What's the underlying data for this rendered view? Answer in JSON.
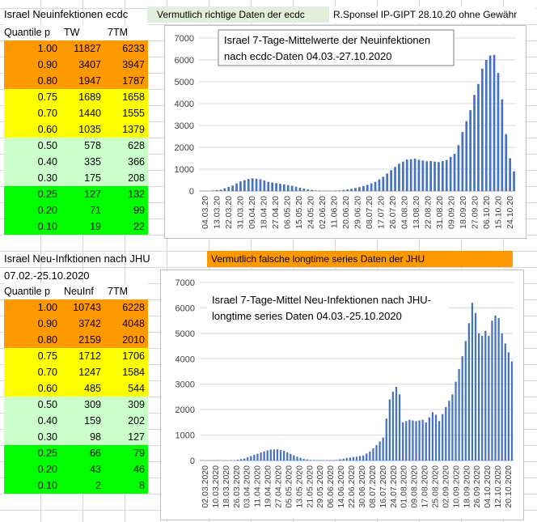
{
  "top": {
    "title": "Israel Neuinfektionen ecdc",
    "note": "Vermutlich richtige Daten der ecdc",
    "author": "R.Sponsel IP-GIPT 28.10.20 ohne Gewähr",
    "table": {
      "headers": [
        "Quantile p",
        "TW",
        "7TM"
      ],
      "rows": [
        [
          "1.00",
          "11827",
          "6233"
        ],
        [
          "0.90",
          "3407",
          "3947"
        ],
        [
          "0.80",
          "1947",
          "1787"
        ],
        [
          "0.75",
          "1689",
          "1658"
        ],
        [
          "0.70",
          "1440",
          "1555"
        ],
        [
          "0.60",
          "1035",
          "1379"
        ],
        [
          "0.50",
          "578",
          "628"
        ],
        [
          "0.40",
          "335",
          "366"
        ],
        [
          "0.30",
          "175",
          "208"
        ],
        [
          "0.25",
          "127",
          "132"
        ],
        [
          "0.20",
          "71",
          "99"
        ],
        [
          "0.10",
          "19",
          "22"
        ]
      ]
    }
  },
  "bottom": {
    "title": "Israel Neu-Infktionen nach JHU",
    "note": "Vermutlich falsche longtime series Daten der JHU",
    "date_range": "07.02.-25.10.2020",
    "table": {
      "headers": [
        "Quantile p",
        "NeuInf",
        "7TM"
      ],
      "rows": [
        [
          "1.00",
          "10743",
          "6228"
        ],
        [
          "0.90",
          "3742",
          "4048"
        ],
        [
          "0.80",
          "2159",
          "2010"
        ],
        [
          "0.75",
          "1712",
          "1706"
        ],
        [
          "0.70",
          "1247",
          "1584"
        ],
        [
          "0.60",
          "485",
          "544"
        ],
        [
          "0.50",
          "309",
          "309"
        ],
        [
          "0.40",
          "159",
          "202"
        ],
        [
          "0.30",
          "98",
          "127"
        ],
        [
          "0.25",
          "66",
          "79"
        ],
        [
          "0.20",
          "43",
          "46"
        ],
        [
          "0.10",
          "2",
          "8"
        ]
      ]
    }
  },
  "colors": {
    "orange": "#ff9900",
    "yellow": "#ffff00",
    "lightgreen": "#ccffcc",
    "green": "#00ff00",
    "note_green": "#e2efda",
    "note_orange": "#ff9900",
    "bar": "#4472c4"
  },
  "chart_data": [
    {
      "type": "bar",
      "title": "Israel 7-Tage-Mittelwerte der Neuinfektionen nach ecdc-Daten 04.03.-27.10.2020",
      "title_lines": [
        "Israel 7-Tage-Mittelwerte der Neuinfektionen",
        "nach ecdc-Daten 04.03.-27.10.2020"
      ],
      "ylim": [
        0,
        7000
      ],
      "yticks": [
        "0",
        "1000",
        "2000",
        "3000",
        "4000",
        "5000",
        "6000",
        "7000"
      ],
      "xticks": [
        "04.03.20",
        "13.03.20",
        "22.03.20",
        "31.03.20",
        "09.04.20",
        "18.04.20",
        "27.04.20",
        "06.05.20",
        "15.05.20",
        "24.05.20",
        "02.06.20",
        "11.06.20",
        "20.06.20",
        "29.06.20",
        "08.07.20",
        "17.07.20",
        "26.07.20",
        "04.08.20",
        "13.08.20",
        "22.08.20",
        "31.08.20",
        "09.09.20",
        "18.09.20",
        "27.09.20",
        "06.10.20",
        "15.10.20",
        "24.10.20"
      ],
      "bars": 80,
      "keypoints": [
        [
          0,
          0
        ],
        [
          2,
          5
        ],
        [
          5,
          60
        ],
        [
          8,
          250
        ],
        [
          10,
          440
        ],
        [
          12,
          550
        ],
        [
          13,
          580
        ],
        [
          15,
          540
        ],
        [
          17,
          420
        ],
        [
          20,
          330
        ],
        [
          23,
          240
        ],
        [
          25,
          150
        ],
        [
          27,
          70
        ],
        [
          29,
          25
        ],
        [
          32,
          10
        ],
        [
          35,
          25
        ],
        [
          38,
          100
        ],
        [
          40,
          180
        ],
        [
          42,
          280
        ],
        [
          44,
          420
        ],
        [
          46,
          650
        ],
        [
          48,
          950
        ],
        [
          50,
          1250
        ],
        [
          52,
          1440
        ],
        [
          54,
          1480
        ],
        [
          55,
          1430
        ],
        [
          57,
          1360
        ],
        [
          58,
          1370
        ],
        [
          60,
          1320
        ],
        [
          62,
          1420
        ],
        [
          64,
          1700
        ],
        [
          65,
          2100
        ],
        [
          66,
          2700
        ],
        [
          67,
          3200
        ],
        [
          68,
          3700
        ],
        [
          69,
          4400
        ],
        [
          70,
          4900
        ],
        [
          71,
          5600
        ],
        [
          72,
          6000
        ],
        [
          73,
          6200
        ],
        [
          74,
          6230
        ],
        [
          75,
          5400
        ],
        [
          76,
          4200
        ],
        [
          77,
          2600
        ],
        [
          78,
          1500
        ],
        [
          79,
          900
        ]
      ],
      "xlabel": "",
      "ylabel": ""
    },
    {
      "type": "bar",
      "title": "Israel 7-Tage-Mittel Neu-Infektionen nach JHU-longtime series Daten 04.03.-25.10.2020",
      "title_lines": [
        "Israel 7-Tage-Mittel Neu-Infektionen nach JHU-",
        "longtime series Daten 04.03.-25.10.2020"
      ],
      "ylim": [
        0,
        7000
      ],
      "yticks": [
        "0",
        "1000",
        "2000",
        "3000",
        "4000",
        "5000",
        "6000",
        "7000"
      ],
      "xticks": [
        "02.03.2020",
        "10.03.2020",
        "18.03.2020",
        "26.03.2020",
        "03.04.2020",
        "11.04.2020",
        "19.04.2020",
        "27.04.2020",
        "05.05.2020",
        "13.05.2020",
        "21.05.2020",
        "29.05.2020",
        "06.06.2020",
        "14.06.2020",
        "22.06.2020",
        "30.06.2020",
        "08.07.2020",
        "16.07.2020",
        "24.07.2020",
        "01.08.2020",
        "09.08.2020",
        "17.08.2020",
        "25.08.2020",
        "02.09.2020",
        "10.09.2020",
        "18.09.2020",
        "26.09.2020",
        "04.10.2020",
        "12.10.2020",
        "20.10.2020"
      ],
      "bars": 95,
      "keypoints": [
        [
          0,
          0
        ],
        [
          10,
          5
        ],
        [
          13,
          80
        ],
        [
          16,
          220
        ],
        [
          19,
          360
        ],
        [
          21,
          430
        ],
        [
          23,
          440
        ],
        [
          25,
          380
        ],
        [
          27,
          260
        ],
        [
          29,
          150
        ],
        [
          31,
          60
        ],
        [
          33,
          20
        ],
        [
          37,
          10
        ],
        [
          41,
          20
        ],
        [
          44,
          100
        ],
        [
          47,
          150
        ],
        [
          49,
          200
        ],
        [
          51,
          350
        ],
        [
          53,
          600
        ],
        [
          55,
          900
        ],
        [
          57,
          2400
        ],
        [
          58,
          2700
        ],
        [
          59,
          2900
        ],
        [
          60,
          2600
        ],
        [
          61,
          1500
        ],
        [
          63,
          1600
        ],
        [
          65,
          1550
        ],
        [
          67,
          1600
        ],
        [
          68,
          1500
        ],
        [
          70,
          1900
        ],
        [
          71,
          1800
        ],
        [
          72,
          1550
        ],
        [
          74,
          2100
        ],
        [
          76,
          2600
        ],
        [
          77,
          3100
        ],
        [
          78,
          3600
        ],
        [
          79,
          4100
        ],
        [
          80,
          4700
        ],
        [
          81,
          5400
        ],
        [
          82,
          6200
        ],
        [
          83,
          5800
        ],
        [
          84,
          5000
        ],
        [
          85,
          4900
        ],
        [
          86,
          5100
        ],
        [
          87,
          4900
        ],
        [
          88,
          5500
        ],
        [
          89,
          5700
        ],
        [
          90,
          5600
        ],
        [
          91,
          5000
        ],
        [
          92,
          4600
        ],
        [
          94,
          3900
        ]
      ],
      "xlabel": "",
      "ylabel": ""
    }
  ]
}
